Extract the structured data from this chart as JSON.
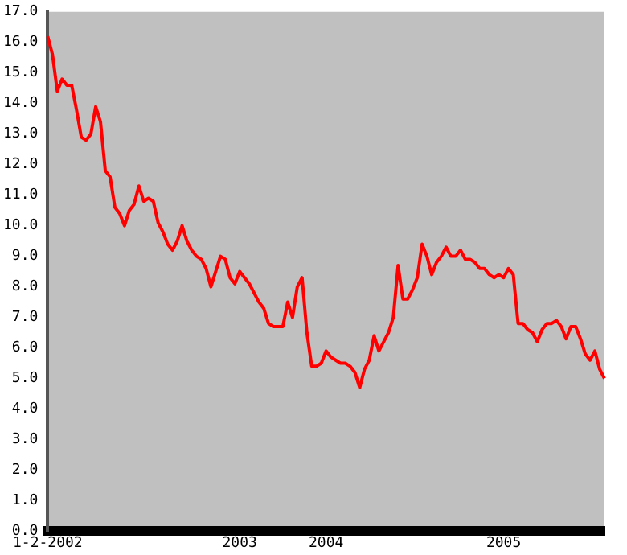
{
  "chart_data": {
    "type": "line",
    "categories": [
      "1-2-2002",
      null,
      null,
      null,
      null,
      null,
      null,
      null,
      null,
      null,
      null,
      null,
      null,
      null,
      null,
      null,
      null,
      null,
      null,
      null,
      null,
      null,
      null,
      null,
      null,
      null,
      null,
      null,
      null,
      null,
      null,
      null,
      null,
      null,
      null,
      null,
      null,
      null,
      null,
      null,
      "2003",
      null,
      null,
      null,
      null,
      null,
      null,
      null,
      null,
      null,
      null,
      null,
      null,
      null,
      null,
      null,
      null,
      null,
      "2004",
      null,
      null,
      null,
      null,
      null,
      null,
      null,
      null,
      null,
      null,
      null,
      null,
      null,
      null,
      null,
      null,
      null,
      null,
      null,
      null,
      null,
      null,
      null,
      null,
      null,
      null,
      null,
      null,
      null,
      null,
      null,
      null,
      null,
      null,
      null,
      null,
      "2005",
      null,
      null,
      null,
      null,
      null,
      null,
      null,
      null,
      null,
      null,
      null,
      null,
      null,
      null,
      null,
      null,
      null,
      null,
      null,
      null,
      null
    ],
    "series": [
      {
        "color": "#ff0000",
        "values": [
          16.2,
          15.6,
          14.4,
          14.8,
          14.6,
          14.6,
          13.8,
          12.9,
          12.8,
          13.0,
          13.9,
          13.4,
          11.8,
          11.6,
          10.6,
          10.4,
          10.0,
          10.5,
          10.7,
          11.3,
          10.8,
          10.9,
          10.8,
          10.1,
          9.8,
          9.4,
          9.2,
          9.5,
          10.0,
          9.5,
          9.2,
          9.0,
          8.9,
          8.6,
          8.0,
          8.5,
          9.0,
          8.9,
          8.3,
          8.1,
          8.5,
          8.3,
          8.1,
          7.8,
          7.5,
          7.3,
          6.8,
          6.7,
          6.7,
          6.7,
          7.5,
          7.0,
          8.0,
          8.3,
          6.5,
          5.4,
          5.4,
          5.5,
          5.9,
          5.7,
          5.6,
          5.5,
          5.5,
          5.4,
          5.2,
          4.7,
          5.3,
          5.6,
          6.4,
          5.9,
          6.2,
          6.5,
          7.0,
          8.7,
          7.6,
          7.6,
          7.9,
          8.3,
          9.4,
          9.0,
          8.4,
          8.8,
          9.0,
          9.3,
          9.0,
          9.0,
          9.2,
          8.9,
          8.9,
          8.8,
          8.6,
          8.6,
          8.4,
          8.3,
          8.4,
          8.3,
          8.6,
          8.4,
          6.8,
          6.8,
          6.6,
          6.5,
          6.2,
          6.6,
          6.8,
          6.8,
          6.9,
          6.7,
          6.3,
          6.7,
          6.7,
          6.3,
          5.8,
          5.6,
          5.9,
          5.3,
          5.0
        ]
      }
    ],
    "ylim": [
      0,
      17
    ],
    "yticks": [
      {
        "value": 0,
        "label": "0.0"
      },
      {
        "value": 1,
        "label": "1.0"
      },
      {
        "value": 2,
        "label": "2.0"
      },
      {
        "value": 3,
        "label": "3.0"
      },
      {
        "value": 4,
        "label": "4.0"
      },
      {
        "value": 5,
        "label": "5.0"
      },
      {
        "value": 6,
        "label": "6.0"
      },
      {
        "value": 7,
        "label": "7.0"
      },
      {
        "value": 8,
        "label": "8.0"
      },
      {
        "value": 9,
        "label": "9.0"
      },
      {
        "value": 10,
        "label": "10.0"
      },
      {
        "value": 11,
        "label": "11.0"
      },
      {
        "value": 12,
        "label": "12.0"
      },
      {
        "value": 13,
        "label": "13.0"
      },
      {
        "value": 14,
        "label": "14.0"
      },
      {
        "value": 15,
        "label": "15.0"
      },
      {
        "value": 16,
        "label": "16.0"
      },
      {
        "value": 17,
        "label": "17.0"
      }
    ],
    "grid": false,
    "legend": false,
    "marker": "none",
    "line_style": "solid"
  }
}
